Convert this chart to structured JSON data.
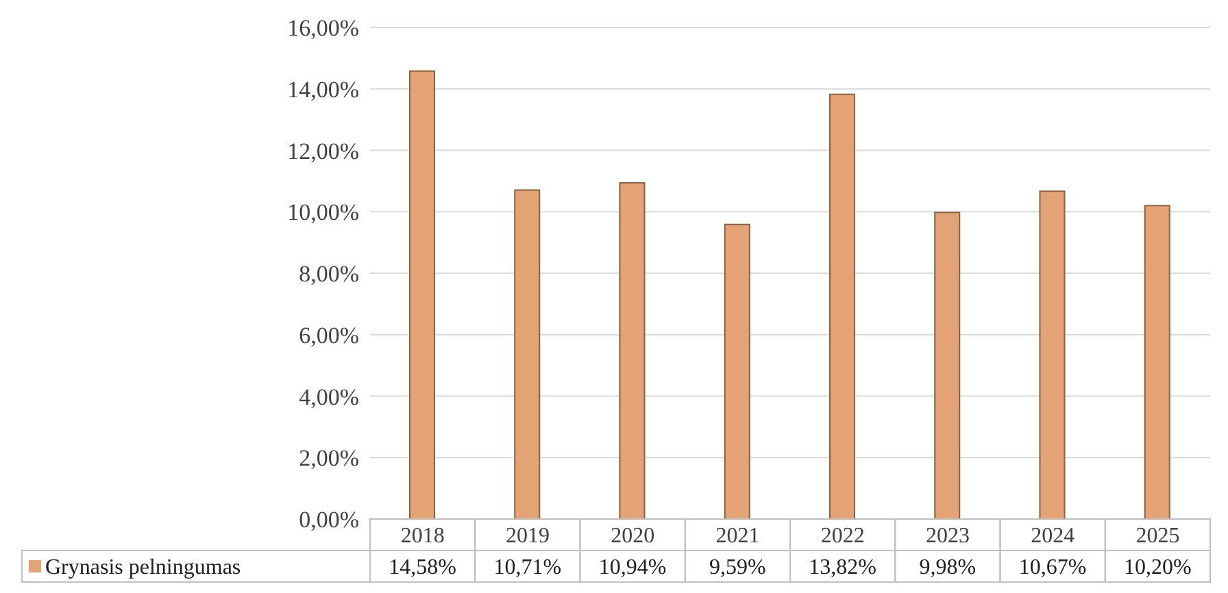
{
  "chart_data": {
    "type": "bar",
    "categories": [
      "2018",
      "2019",
      "2020",
      "2021",
      "2022",
      "2023",
      "2024",
      "2025"
    ],
    "series": [
      {
        "name": "Grynasis pelningumas",
        "color": "#e3a374",
        "values": [
          14.58,
          10.71,
          10.94,
          9.59,
          13.82,
          9.98,
          10.67,
          10.2
        ],
        "value_labels": [
          "14,58%",
          "10,71%",
          "10,94%",
          "9,59%",
          "13,82%",
          "9,98%",
          "10,67%",
          "10,20%"
        ]
      }
    ],
    "ylim": [
      0,
      16
    ],
    "yticks": [
      {
        "value": 0,
        "label": "0,00%"
      },
      {
        "value": 2,
        "label": "2,00%"
      },
      {
        "value": 4,
        "label": "4,00%"
      },
      {
        "value": 6,
        "label": "6,00%"
      },
      {
        "value": 8,
        "label": "8,00%"
      },
      {
        "value": 10,
        "label": "10,00%"
      },
      {
        "value": 12,
        "label": "12,00%"
      },
      {
        "value": 14,
        "label": "14,00%"
      },
      {
        "value": 16,
        "label": "16,00%"
      }
    ],
    "grid": "y",
    "legend": "bottom"
  }
}
